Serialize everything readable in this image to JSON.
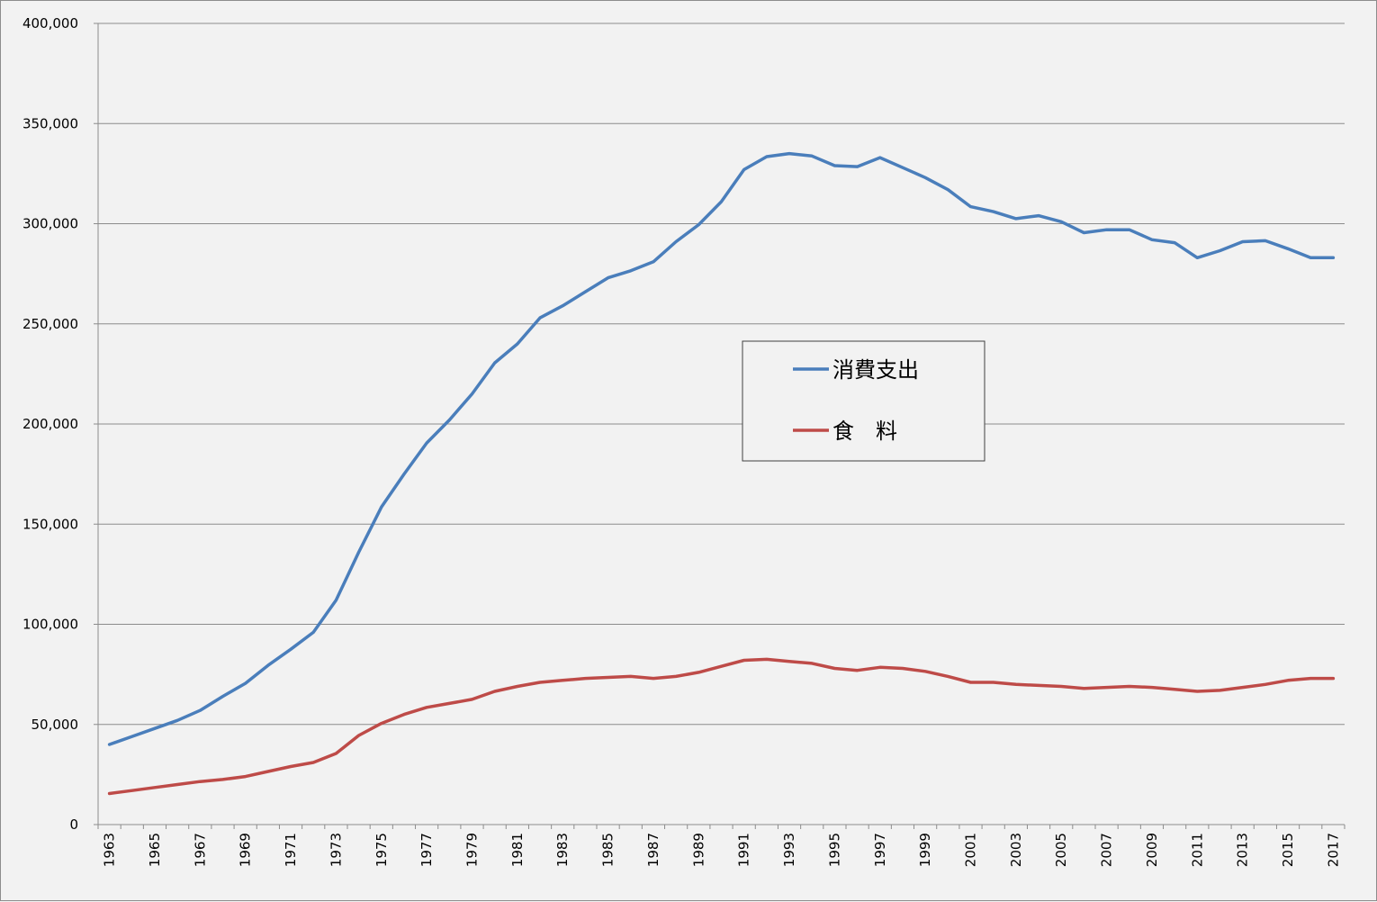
{
  "chart_data": {
    "type": "line",
    "x": [
      1963,
      1964,
      1965,
      1966,
      1967,
      1968,
      1969,
      1970,
      1971,
      1972,
      1973,
      1974,
      1975,
      1976,
      1977,
      1978,
      1979,
      1980,
      1981,
      1982,
      1983,
      1984,
      1985,
      1986,
      1987,
      1988,
      1989,
      1990,
      1991,
      1992,
      1993,
      1994,
      1995,
      1996,
      1997,
      1998,
      1999,
      2000,
      2001,
      2002,
      2003,
      2004,
      2005,
      2006,
      2007,
      2008,
      2009,
      2010,
      2011,
      2012,
      2013,
      2014,
      2015,
      2016,
      2017
    ],
    "x_tick_labels": [
      "1963",
      "1965",
      "1967",
      "1969",
      "1971",
      "1973",
      "1975",
      "1977",
      "1979",
      "1981",
      "1983",
      "1985",
      "1987",
      "1989",
      "1991",
      "1993",
      "1995",
      "1997",
      "1999",
      "2001",
      "2003",
      "2005",
      "2007",
      "2009",
      "2011",
      "2013",
      "2015",
      "2017"
    ],
    "y_tick_labels": [
      "0",
      "50,000",
      "100,000",
      "150,000",
      "200,000",
      "250,000",
      "300,000",
      "350,000",
      "400,000"
    ],
    "ylim": [
      0,
      400000
    ],
    "grid": true,
    "legend_position": "center-right",
    "series": [
      {
        "name": "消費支出",
        "color": "#4a7ebb",
        "values": [
          40000,
          44000,
          48000,
          52000,
          57000,
          64000,
          70500,
          79500,
          87500,
          96000,
          112000,
          136000,
          158500,
          175000,
          190500,
          202000,
          215000,
          230500,
          240000,
          253000,
          259000,
          266000,
          273000,
          276500,
          281000,
          291000,
          299500,
          311000,
          327000,
          333500,
          335000,
          333800,
          329000,
          328500,
          333000,
          328000,
          323000,
          317000,
          308500,
          306000,
          302500,
          304000,
          301000,
          295500,
          297000,
          297000,
          292000,
          290500,
          283000,
          286500,
          291000,
          291500,
          287500,
          283000,
          283000
        ]
      },
      {
        "name": "食　料",
        "color": "#be4b48",
        "values": [
          15500,
          17000,
          18500,
          20000,
          21500,
          22500,
          24000,
          26500,
          29000,
          31000,
          35500,
          44500,
          50500,
          55000,
          58500,
          60500,
          62500,
          66500,
          69000,
          71000,
          72000,
          73000,
          73500,
          74000,
          73000,
          74000,
          76000,
          79000,
          82000,
          82500,
          81500,
          80500,
          78000,
          77000,
          78500,
          78000,
          76500,
          74000,
          71000,
          71000,
          70000,
          69500,
          69000,
          68000,
          68500,
          69000,
          68500,
          67500,
          66500,
          67000,
          68500,
          70000,
          72000,
          73000,
          73000
        ]
      }
    ]
  }
}
